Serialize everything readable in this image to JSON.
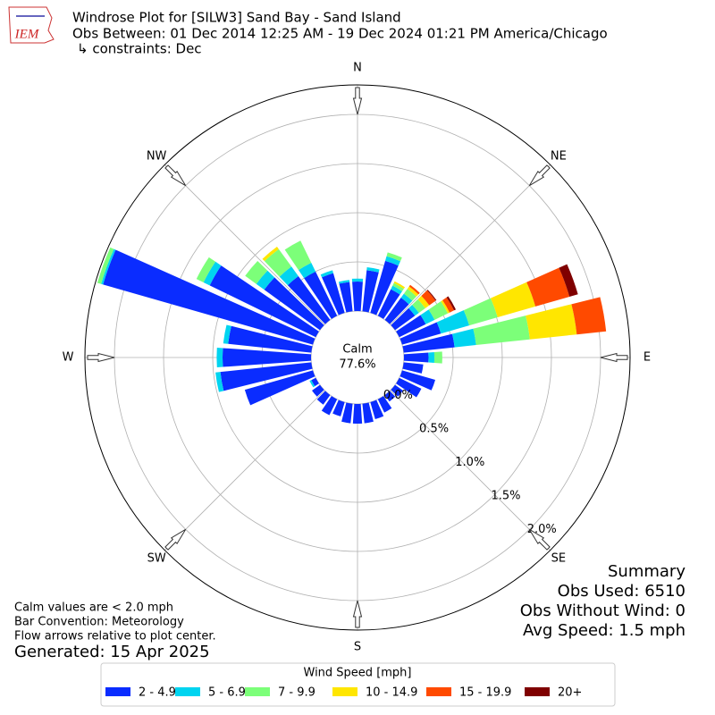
{
  "chart_data": {
    "type": "windrose",
    "logo_text": "IEM",
    "title_lines": [
      "Windrose Plot for [SILW3] Sand Bay - Sand Island",
      "Obs Between: 01 Dec 2014 12:25 AM - 19 Dec 2024 01:21 PM America/Chicago",
      "↳ constraints: Dec"
    ],
    "compass": [
      "N",
      "NE",
      "E",
      "SE",
      "S",
      "SW",
      "W",
      "NW"
    ],
    "calm": {
      "label": "Calm",
      "value": 77.6,
      "value_label": "77.6%"
    },
    "rlim": [
      0,
      2.3
    ],
    "rticks": [
      {
        "value": 0,
        "label": "0.0%"
      },
      {
        "value": 0.5,
        "label": "0.5%"
      },
      {
        "value": 1.0,
        "label": "1.0%"
      },
      {
        "value": 1.5,
        "label": "1.5%"
      },
      {
        "value": 2.0,
        "label": "2.0%"
      }
    ],
    "x": [
      0,
      10,
      20,
      30,
      40,
      50,
      60,
      70,
      80,
      90,
      100,
      110,
      120,
      130,
      140,
      150,
      160,
      170,
      180,
      190,
      200,
      210,
      220,
      230,
      240,
      250,
      260,
      270,
      280,
      290,
      300,
      310,
      320,
      330,
      340,
      350
    ],
    "legend_title": "Wind Speed [mph]",
    "series": [
      {
        "name": "2 - 4.9",
        "color": "#0a2cff",
        "values": [
          0.3,
          0.42,
          0.55,
          0.3,
          0.28,
          0.25,
          0.3,
          0.41,
          0.52,
          0.25,
          0.2,
          0.35,
          0.25,
          0.1,
          0.08,
          0.15,
          0.18,
          0.2,
          0.2,
          0.2,
          0.15,
          0.18,
          0.12,
          0.1,
          0.05,
          0.72,
          0.93,
          0.9,
          0.85,
          2.22,
          1.2,
          0.7,
          0.55,
          0.5,
          0.42,
          0.3
        ]
      },
      {
        "name": "5 - 6.9",
        "color": "#00d4f0",
        "values": [
          0.03,
          0.03,
          0.05,
          0.04,
          0.05,
          0.05,
          0.1,
          0.3,
          0.22,
          0.06,
          0,
          0,
          0,
          0,
          0,
          0,
          0,
          0,
          0,
          0,
          0,
          0,
          0,
          0,
          0.02,
          0,
          0.05,
          0.06,
          0.05,
          0.02,
          0.07,
          0.1,
          0.12,
          0.1,
          0.03,
          0.02
        ]
      },
      {
        "name": "7 - 9.9",
        "color": "#7cff79",
        "values": [
          0,
          0,
          0.04,
          0.03,
          0.06,
          0.08,
          0.15,
          0.3,
          0.55,
          0.08,
          0,
          0,
          0,
          0,
          0,
          0,
          0,
          0,
          0,
          0,
          0,
          0,
          0,
          0,
          0,
          0,
          0,
          0,
          0,
          0.04,
          0.08,
          0.14,
          0.22,
          0.25,
          0,
          0
        ]
      },
      {
        "name": "10 - 14.9",
        "color": "#ffe600",
        "values": [
          0,
          0,
          0,
          0.02,
          0.03,
          0.05,
          0.02,
          0.4,
          0.48,
          0,
          0,
          0,
          0,
          0,
          0,
          0,
          0,
          0,
          0,
          0,
          0,
          0,
          0,
          0,
          0,
          0,
          0,
          0,
          0,
          0,
          0,
          0,
          0.03,
          0,
          0,
          0
        ]
      },
      {
        "name": "15 - 19.9",
        "color": "#ff4a00",
        "values": [
          0,
          0,
          0,
          0,
          0.02,
          0.08,
          0.05,
          0.36,
          0.3,
          0,
          0,
          0,
          0,
          0,
          0,
          0,
          0,
          0,
          0,
          0,
          0,
          0,
          0,
          0,
          0,
          0,
          0,
          0,
          0,
          0,
          0,
          0,
          0,
          0,
          0,
          0
        ]
      },
      {
        "name": "20+",
        "color": "#7f0000",
        "values": [
          0,
          0,
          0,
          0,
          0,
          0.01,
          0.02,
          0.09,
          0,
          0,
          0,
          0,
          0,
          0,
          0,
          0,
          0,
          0,
          0,
          0,
          0,
          0,
          0,
          0,
          0,
          0,
          0,
          0,
          0,
          0,
          0,
          0,
          0,
          0,
          0,
          0
        ]
      }
    ],
    "summary": [
      "Summary",
      "Obs Used: 6510",
      "Obs Without Wind: 0",
      "Avg Speed: 1.5 mph"
    ],
    "notes": [
      "Calm values are < 2.0 mph",
      "Bar Convention: Meteorology",
      "Flow arrows relative to plot center."
    ],
    "generated": "Generated: 15 Apr 2025"
  }
}
